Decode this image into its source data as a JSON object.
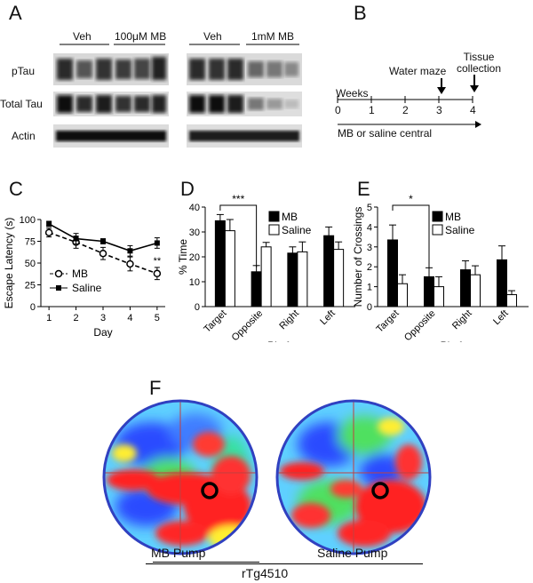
{
  "panels": {
    "A": {
      "label": "A",
      "group1": {
        "veh": "Veh",
        "mb": "100μM MB"
      },
      "group2": {
        "veh": "Veh",
        "mb": "1mM MB"
      },
      "rows": [
        "pTau",
        "Total Tau",
        "Actin"
      ]
    },
    "B": {
      "label": "B",
      "weeks_label": "Weeks",
      "ticks": [
        "0",
        "1",
        "2",
        "3",
        "4"
      ],
      "event1": "Water maze",
      "event2_line1": "Tissue",
      "event2_line2": "collection",
      "treatment": "MB or saline central"
    },
    "C": {
      "label": "C"
    },
    "D": {
      "label": "D"
    },
    "E": {
      "label": "E"
    },
    "F": {
      "label": "F",
      "left_caption": "MB Pump",
      "right_caption": "Saline Pump",
      "bottom_caption": "rTg4510"
    }
  },
  "chart_data": [
    {
      "panel": "C",
      "type": "line",
      "x": [
        1,
        2,
        3,
        4,
        5
      ],
      "xlabel": "Day",
      "ylabel": "Escape Latency (s)",
      "ylim": [
        0,
        100
      ],
      "yticks": [
        "0",
        "25",
        "50",
        "75",
        "100"
      ],
      "xticks": [
        "1",
        "2",
        "3",
        "4",
        "5"
      ],
      "legend_position": "bottom-left",
      "series": [
        {
          "name": "MB",
          "values": [
            85,
            74,
            61,
            49,
            38
          ],
          "errors": [
            5,
            7,
            7,
            8,
            7
          ],
          "style": "dashed",
          "marker": "open-circle"
        },
        {
          "name": "Saline",
          "values": [
            95,
            78,
            75,
            64,
            73
          ],
          "errors": [
            3,
            6,
            3,
            6,
            6
          ],
          "style": "solid",
          "marker": "filled-square"
        }
      ],
      "annotation": "**"
    },
    {
      "panel": "D",
      "type": "bar",
      "categories": [
        "Target",
        "Opposite",
        "Right",
        "Left"
      ],
      "xlabel": "Platform",
      "ylabel": "% Time",
      "ylim": [
        0,
        40
      ],
      "yticks": [
        "0",
        "10",
        "20",
        "30",
        "40"
      ],
      "legend_position": "top-right",
      "series": [
        {
          "name": "MB",
          "values": [
            34.5,
            14,
            21.5,
            28.5
          ],
          "errors": [
            2.5,
            2.5,
            2.5,
            3.5
          ],
          "fill": "#000000"
        },
        {
          "name": "Saline",
          "values": [
            30.5,
            24,
            22,
            23
          ],
          "errors": [
            4.5,
            1.8,
            4,
            3
          ],
          "fill": "#ffffff"
        }
      ],
      "annotation": "***"
    },
    {
      "panel": "E",
      "type": "bar",
      "categories": [
        "Target",
        "Opposite",
        "Right",
        "Left"
      ],
      "xlabel": "Platform",
      "ylabel": "Number of Crossings",
      "ylim": [
        0,
        5
      ],
      "yticks": [
        "0",
        "1",
        "2",
        "3",
        "4",
        "5"
      ],
      "legend_position": "top-right",
      "series": [
        {
          "name": "MB",
          "values": [
            3.35,
            1.5,
            1.85,
            2.35
          ],
          "errors": [
            0.75,
            0.45,
            0.45,
            0.7
          ],
          "fill": "#000000"
        },
        {
          "name": "Saline",
          "values": [
            1.15,
            1.0,
            1.6,
            0.6
          ],
          "errors": [
            0.45,
            0.5,
            0.45,
            0.2
          ],
          "fill": "#ffffff"
        }
      ],
      "annotation": "*"
    }
  ]
}
